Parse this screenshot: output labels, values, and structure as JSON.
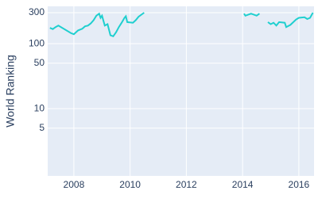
{
  "chart_data": {
    "type": "line",
    "y_label": "World Ranking",
    "x": [
      2007.15,
      2007.25,
      2007.35,
      2007.45,
      2007.9,
      2008.0,
      2008.15,
      2008.3,
      2008.4,
      2008.5,
      2008.6,
      2008.7,
      2008.8,
      2008.9,
      2008.95,
      2009.0,
      2009.1,
      2009.2,
      2009.3,
      2009.4,
      2009.5,
      2009.6,
      2009.7,
      2009.8,
      2009.85,
      2009.9,
      2010.1,
      2010.2,
      2010.3,
      2010.5,
      2012.0,
      2014.05,
      2014.1,
      2014.3,
      2014.5,
      2014.6,
      2014.75,
      2014.9,
      2015.0,
      2015.1,
      2015.2,
      2015.3,
      2015.5,
      2015.55,
      2015.7,
      2015.9,
      2016.0,
      2016.2,
      2016.3,
      2016.4,
      2016.5
    ],
    "series": [
      {
        "name": "World Ranking",
        "color": "#1fcfcf",
        "values": [
          175,
          168,
          180,
          190,
          145,
          140,
          160,
          170,
          185,
          190,
          205,
          230,
          270,
          290,
          250,
          270,
          190,
          200,
          135,
          130,
          150,
          180,
          210,
          250,
          265,
          215,
          210,
          230,
          260,
          300,
          null,
          290,
          270,
          290,
          270,
          290,
          null,
          215,
          200,
          210,
          190,
          215,
          210,
          180,
          195,
          235,
          250,
          255,
          240,
          250,
          300
        ]
      }
    ],
    "xlim": [
      2007.07,
      2016.54
    ],
    "xticks": [
      2008,
      2010,
      2012,
      2014,
      2016
    ],
    "ylim": [
      0.92,
      376
    ],
    "yticks": [
      5,
      10,
      50,
      100,
      300
    ],
    "log_y": true,
    "grid": true
  }
}
